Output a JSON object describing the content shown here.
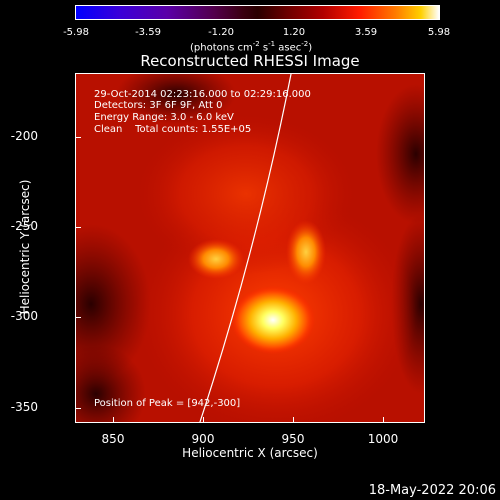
{
  "colorbar": {
    "ticks": [
      "-5.98",
      "-3.59",
      "-1.20",
      "1.20",
      "3.59",
      "5.98"
    ],
    "units_main": "(photons cm",
    "units_exp1": "-2",
    "units_mid1": " s",
    "units_exp2": "-1",
    "units_mid2": " asec",
    "units_exp3": "-2",
    "units_end": ")"
  },
  "title": "Reconstructed RHESSI Image",
  "info": {
    "time": "29-Oct-2014 02:23:16.000 to 02:29:16.000",
    "detectors": "Detectors: 3F 6F 9F, Att 0",
    "energy": "Energy Range: 3.0 - 6.0 keV",
    "clean": "Clean    Total counts: 1.55E+05",
    "peak": "Position of Peak = [942,-300]"
  },
  "axes": {
    "xlabel": "Heliocentric X (arcsec)",
    "ylabel": "Heliocentric Y (arcsec)",
    "xticks": [
      "850",
      "900",
      "950",
      "1000"
    ],
    "yticks": [
      "-200",
      "-250",
      "-300",
      "-350"
    ]
  },
  "timestamp": "18-May-2022 20:06"
}
